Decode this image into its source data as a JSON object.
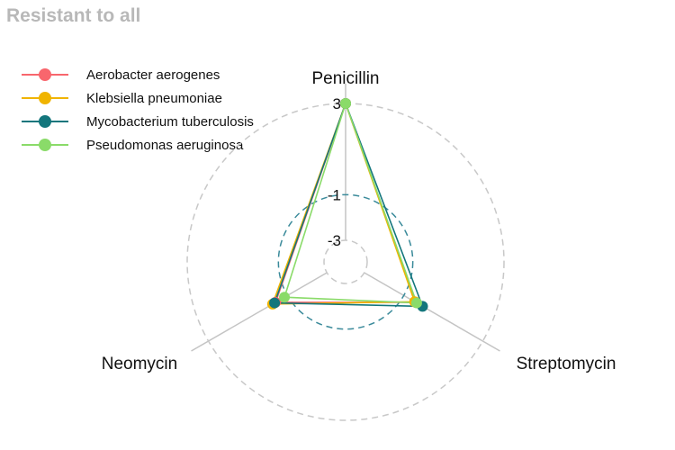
{
  "chart_data": {
    "type": "radar",
    "title": "Resistant to all",
    "axes": [
      "Penicillin",
      "Streptomycin",
      "Neomycin"
    ],
    "grid_labels": [
      "-3",
      "-1",
      "3"
    ],
    "rlim": [
      -3,
      3
    ],
    "grid_levels": [
      -3,
      -1,
      3
    ],
    "series": [
      {
        "name": "Aerobacter aerogenes",
        "color": "#F8666D",
        "values": [
          3,
          -0.4,
          -0.4
        ]
      },
      {
        "name": "Klebsiella pneumoniae",
        "color": "#F0B400",
        "values": [
          3,
          -0.45,
          -0.25
        ]
      },
      {
        "name": "Mycobacterium tuberculosis",
        "color": "#13767C",
        "values": [
          3,
          -0.05,
          -0.35
        ]
      },
      {
        "name": "Pseudomonas aeruginosa",
        "color": "#8ADB69",
        "values": [
          3,
          -0.35,
          -0.85
        ]
      }
    ],
    "legend_position": "top-left"
  }
}
